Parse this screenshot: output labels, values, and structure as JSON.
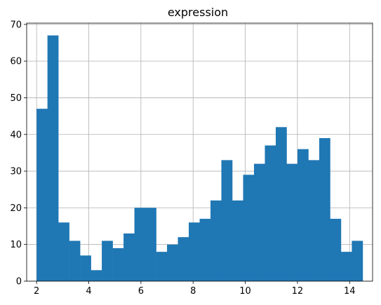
{
  "chart_data": {
    "type": "bar",
    "title": "expression",
    "xlabel": "",
    "ylabel": "",
    "xlim": [
      1.62,
      14.88
    ],
    "ylim": [
      0,
      70.35
    ],
    "xticks": [
      2,
      4,
      6,
      8,
      10,
      12,
      14
    ],
    "yticks": [
      0,
      10,
      20,
      30,
      40,
      50,
      60,
      70
    ],
    "grid": true,
    "bar_color": "#1f77b4",
    "bins": {
      "start": 2.0,
      "width": 0.4167,
      "counts": [
        47,
        67,
        16,
        11,
        7,
        3,
        11,
        9,
        13,
        20,
        20,
        8,
        10,
        12,
        16,
        17,
        22,
        33,
        22,
        29,
        32,
        37,
        42,
        32,
        36,
        33,
        39,
        17,
        8,
        11
      ]
    }
  }
}
